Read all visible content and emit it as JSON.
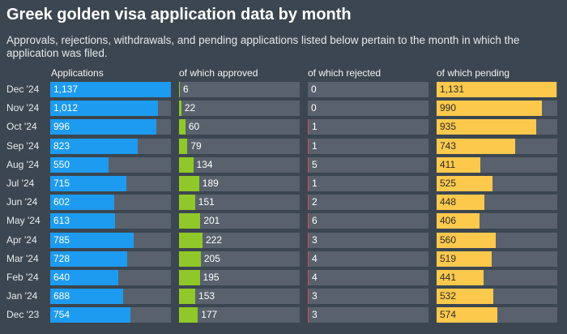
{
  "chart_data": {
    "type": "bar",
    "title": "Greek golden visa application data by month",
    "subtitle": "Approvals, rejections, withdrawals, and pending applications listed below pertain to the month in which the application was filed.",
    "categories": [
      "Dec '24",
      "Nov '24",
      "Oct '24",
      "Sep '24",
      "Aug '24",
      "Jul '24",
      "Jun '24",
      "May '24",
      "Apr '24",
      "Mar '24",
      "Feb '24",
      "Jan '24",
      "Dec '23"
    ],
    "xlim": [
      0,
      1137
    ],
    "series": [
      {
        "name": "Applications",
        "color": "#1d9bf0",
        "label_color": "#ffffff",
        "values": [
          1137,
          1012,
          996,
          823,
          550,
          715,
          602,
          613,
          785,
          728,
          640,
          688,
          754
        ]
      },
      {
        "name": "of which approved",
        "color": "#8fc828",
        "label_color": "#ffffff",
        "values": [
          6,
          22,
          60,
          79,
          134,
          189,
          151,
          201,
          222,
          205,
          195,
          153,
          177
        ]
      },
      {
        "name": "of which rejected",
        "color": "#e0485c",
        "label_color": "#ffffff",
        "values": [
          0,
          0,
          1,
          1,
          5,
          1,
          2,
          6,
          3,
          4,
          4,
          3,
          3
        ]
      },
      {
        "name": "of which pending",
        "color": "#fdc94d",
        "label_color": "#2b2b2b",
        "values": [
          1131,
          990,
          935,
          743,
          411,
          525,
          448,
          406,
          560,
          519,
          441,
          532,
          574
        ]
      }
    ]
  }
}
